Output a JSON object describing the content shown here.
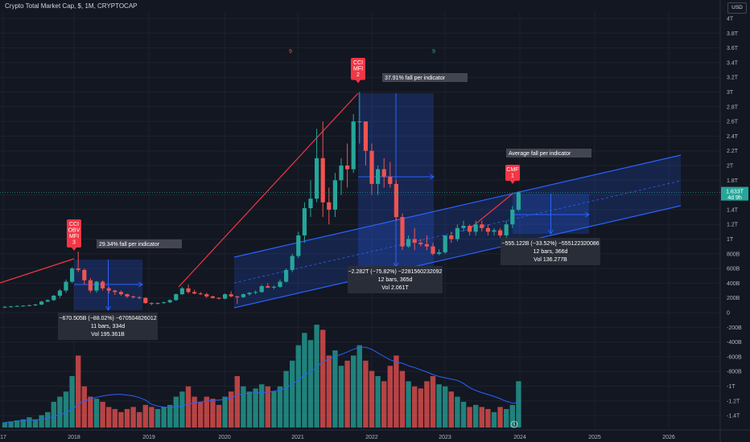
{
  "header": {
    "title": "Crypto Total Market Cap, $, 1M, CRYPTOCAP",
    "currency": "USD"
  },
  "colors": {
    "background": "#131722",
    "up": "#26a69a",
    "down": "#ef5350",
    "channel": "#2962ff",
    "trendline": "#f23645",
    "label_box": "#434651",
    "stats_box": "#2a2e39"
  },
  "chart_data": {
    "type": "candlestick",
    "price_axis_ticks": [
      "4T",
      "3.8T",
      "3.6T",
      "3.4T",
      "3.2T",
      "3T",
      "2.8T",
      "2.6T",
      "2.4T",
      "2.2T",
      "2T",
      "1.8T",
      "1.6T",
      "1.4T",
      "1.2T",
      "1T",
      "800B",
      "600B",
      "400B",
      "200B",
      "0",
      "-200B",
      "-400B",
      "-600B",
      "-800B",
      "-1T",
      "-1.2T",
      "-1.4T"
    ],
    "current_price": "1.633T",
    "current_price_sub": "4d 9h",
    "time_axis_ticks": [
      "17",
      "2018",
      "2019",
      "2020",
      "2021",
      "2022",
      "2023",
      "2024",
      "2025",
      "2026"
    ],
    "candles_T": [
      [
        0.07,
        0.09,
        0.06,
        0.08
      ],
      [
        0.08,
        0.09,
        0.07,
        0.085
      ],
      [
        0.085,
        0.1,
        0.08,
        0.09
      ],
      [
        0.09,
        0.1,
        0.08,
        0.095
      ],
      [
        0.095,
        0.11,
        0.09,
        0.1
      ],
      [
        0.1,
        0.12,
        0.09,
        0.11
      ],
      [
        0.11,
        0.16,
        0.1,
        0.15
      ],
      [
        0.15,
        0.18,
        0.14,
        0.17
      ],
      [
        0.17,
        0.24,
        0.16,
        0.23
      ],
      [
        0.23,
        0.32,
        0.2,
        0.3
      ],
      [
        0.3,
        0.45,
        0.27,
        0.42
      ],
      [
        0.42,
        0.62,
        0.4,
        0.6
      ],
      [
        0.6,
        0.83,
        0.55,
        0.58
      ],
      [
        0.58,
        0.6,
        0.38,
        0.44
      ],
      [
        0.44,
        0.47,
        0.27,
        0.3
      ],
      [
        0.3,
        0.43,
        0.27,
        0.42
      ],
      [
        0.42,
        0.44,
        0.3,
        0.33
      ],
      [
        0.33,
        0.35,
        0.26,
        0.3
      ],
      [
        0.3,
        0.31,
        0.24,
        0.28
      ],
      [
        0.28,
        0.3,
        0.23,
        0.25
      ],
      [
        0.25,
        0.26,
        0.2,
        0.22
      ],
      [
        0.22,
        0.23,
        0.19,
        0.21
      ],
      [
        0.21,
        0.22,
        0.18,
        0.2
      ],
      [
        0.2,
        0.21,
        0.12,
        0.13
      ],
      [
        0.13,
        0.14,
        0.1,
        0.12
      ],
      [
        0.12,
        0.14,
        0.11,
        0.13
      ],
      [
        0.13,
        0.15,
        0.12,
        0.14
      ],
      [
        0.14,
        0.18,
        0.13,
        0.17
      ],
      [
        0.17,
        0.26,
        0.16,
        0.25
      ],
      [
        0.25,
        0.35,
        0.24,
        0.33
      ],
      [
        0.33,
        0.38,
        0.26,
        0.28
      ],
      [
        0.28,
        0.31,
        0.25,
        0.26
      ],
      [
        0.26,
        0.28,
        0.24,
        0.25
      ],
      [
        0.25,
        0.27,
        0.2,
        0.22
      ],
      [
        0.22,
        0.23,
        0.19,
        0.2
      ],
      [
        0.2,
        0.21,
        0.18,
        0.19
      ],
      [
        0.19,
        0.26,
        0.18,
        0.25
      ],
      [
        0.25,
        0.29,
        0.21,
        0.22
      ],
      [
        0.22,
        0.23,
        0.12,
        0.21
      ],
      [
        0.21,
        0.26,
        0.2,
        0.25
      ],
      [
        0.25,
        0.28,
        0.23,
        0.27
      ],
      [
        0.27,
        0.3,
        0.25,
        0.28
      ],
      [
        0.28,
        0.38,
        0.27,
        0.36
      ],
      [
        0.36,
        0.4,
        0.33,
        0.34
      ],
      [
        0.34,
        0.37,
        0.32,
        0.35
      ],
      [
        0.35,
        0.45,
        0.34,
        0.42
      ],
      [
        0.42,
        0.6,
        0.41,
        0.58
      ],
      [
        0.58,
        0.8,
        0.55,
        0.77
      ],
      [
        0.77,
        1.1,
        0.74,
        1.05
      ],
      [
        1.05,
        1.5,
        0.95,
        1.42
      ],
      [
        1.42,
        1.8,
        1.3,
        1.55
      ],
      [
        1.55,
        2.5,
        1.5,
        2.1
      ],
      [
        2.1,
        2.6,
        1.3,
        1.5
      ],
      [
        1.5,
        1.7,
        1.2,
        1.4
      ],
      [
        1.4,
        1.9,
        1.3,
        1.8
      ],
      [
        1.8,
        2.1,
        1.6,
        2.0
      ],
      [
        2.0,
        2.3,
        1.7,
        1.95
      ],
      [
        1.95,
        2.7,
        1.9,
        2.6
      ],
      [
        2.6,
        3.0,
        2.3,
        2.6
      ],
      [
        2.6,
        2.6,
        2.0,
        2.2
      ],
      [
        2.2,
        2.3,
        1.6,
        1.75
      ],
      [
        1.75,
        2.0,
        1.6,
        1.95
      ],
      [
        1.95,
        2.1,
        1.7,
        1.85
      ],
      [
        1.85,
        2.05,
        1.7,
        1.75
      ],
      [
        1.75,
        1.8,
        1.25,
        1.3
      ],
      [
        1.3,
        1.35,
        0.85,
        0.9
      ],
      [
        0.9,
        1.05,
        0.88,
        1.0
      ],
      [
        1.0,
        1.15,
        0.85,
        0.95
      ],
      [
        0.95,
        1.0,
        0.9,
        0.93
      ],
      [
        0.93,
        1.05,
        0.85,
        0.9
      ],
      [
        0.9,
        0.95,
        0.78,
        0.8
      ],
      [
        0.8,
        0.86,
        0.78,
        0.82
      ],
      [
        0.82,
        1.05,
        0.8,
        1.05
      ],
      [
        1.05,
        1.1,
        0.95,
        1.0
      ],
      [
        1.0,
        1.2,
        0.97,
        1.15
      ],
      [
        1.15,
        1.25,
        1.1,
        1.18
      ],
      [
        1.18,
        1.2,
        1.05,
        1.1
      ],
      [
        1.1,
        1.25,
        1.05,
        1.2
      ],
      [
        1.2,
        1.25,
        1.1,
        1.15
      ],
      [
        1.15,
        1.2,
        1.05,
        1.1
      ],
      [
        1.1,
        1.15,
        1.05,
        1.12
      ],
      [
        1.12,
        1.15,
        1.02,
        1.05
      ],
      [
        1.05,
        1.25,
        1.0,
        1.2
      ],
      [
        1.2,
        1.45,
        1.15,
        1.4
      ],
      [
        1.4,
        1.65,
        1.38,
        1.633
      ]
    ],
    "volume_bars": [
      0.05,
      0.06,
      0.07,
      0.08,
      0.1,
      0.08,
      0.12,
      0.15,
      0.25,
      0.3,
      0.35,
      0.5,
      0.7,
      0.4,
      0.3,
      0.28,
      0.25,
      0.2,
      0.18,
      0.15,
      0.18,
      0.2,
      0.15,
      0.22,
      0.2,
      0.18,
      0.2,
      0.22,
      0.3,
      0.35,
      0.4,
      0.3,
      0.25,
      0.3,
      0.28,
      0.22,
      0.3,
      0.35,
      0.5,
      0.4,
      0.35,
      0.38,
      0.42,
      0.4,
      0.35,
      0.4,
      0.55,
      0.65,
      0.8,
      0.92,
      0.85,
      1.0,
      0.95,
      0.7,
      0.75,
      0.6,
      0.65,
      0.7,
      0.8,
      0.65,
      0.55,
      0.5,
      0.45,
      0.6,
      0.7,
      0.55,
      0.45,
      0.4,
      0.38,
      0.45,
      0.5,
      0.42,
      0.4,
      0.35,
      0.3,
      0.25,
      0.2,
      0.22,
      0.2,
      0.18,
      0.15,
      0.2,
      0.18,
      0.22,
      0.45
    ]
  },
  "annotations": {
    "flag_2018": "CCI\nOBV\nMFI\n3",
    "flag_2021": "CCI\nMFI\n2",
    "flag_2023": "CMF\n1",
    "label_2018": "29.34% fall per indicator",
    "label_2021": "37.91% fall per indicator",
    "label_2023": "Average fall per indicator",
    "stats_2018": [
      "−670.505B (−88.02%) −670504826012",
      "11 bars, 334d",
      "Vol 195.361B"
    ],
    "stats_2022": [
      "−2.282T (−75.82%) −2281560232092",
      "12 bars, 365d",
      "Vol 2.061T"
    ],
    "stats_2024": [
      "−555.122B (−33.52%) −555122320086",
      "12 bars, 366d",
      "Vol 136.277B"
    ],
    "top_marker_left": "9",
    "top_marker_right": "9"
  }
}
